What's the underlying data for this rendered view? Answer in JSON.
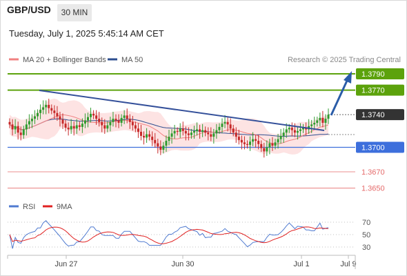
{
  "header": {
    "symbol": "GBP/USD",
    "timeframe": "30 MIN",
    "datetime": "Tuesday, July 1, 2025 5:45:14 AM CET"
  },
  "colors": {
    "candle_up": "#2e9b2e",
    "candle_down": "#c62828",
    "ma20": "#f08080",
    "bollinger_fill": "#fde3e3",
    "ma50": "#2c4d8f",
    "trendline": "#34509a",
    "resistance": "#5ca20c",
    "current": "#333333",
    "support1": "#3d6fdc",
    "support2": "#e56a6a",
    "projection": "#2a5ca8",
    "rsi": "#4f7ad0",
    "rsi_ma": "#e02020"
  },
  "chart_data": [
    {
      "type": "candlestick",
      "legend": [
        {
          "name": "MA 20 + Bollinger Bands",
          "color": "#f08080"
        },
        {
          "name": "MA 50",
          "color": "#2c4d8f"
        }
      ],
      "watermark": "Research © 2025 Trading Central",
      "price_levels": [
        {
          "value": 1.379,
          "label": "1.3790",
          "kind": "resistance"
        },
        {
          "value": 1.377,
          "label": "1.3770",
          "kind": "resistance"
        },
        {
          "value": 1.374,
          "label": "1.3740",
          "kind": "current"
        },
        {
          "value": 1.37,
          "label": "1.3700",
          "kind": "support"
        },
        {
          "value": 1.367,
          "label": "1.3670",
          "kind": "support-minor"
        },
        {
          "value": 1.365,
          "label": "1.3650",
          "kind": "support-minor"
        }
      ],
      "x_ticks": [
        "Jun 27",
        "Jun 30",
        "Jul 1",
        "Jul 9"
      ],
      "closes": [
        1.3728,
        1.3722,
        1.3726,
        1.3718,
        1.3715,
        1.3722,
        1.3728,
        1.3732,
        1.3735,
        1.3738,
        1.3742,
        1.3746,
        1.3749,
        1.3752,
        1.3748,
        1.3745,
        1.3742,
        1.3738,
        1.3734,
        1.3729,
        1.3724,
        1.3722,
        1.3726,
        1.3723,
        1.3727,
        1.3725,
        1.3729,
        1.3733,
        1.3737,
        1.3741,
        1.3739,
        1.3735,
        1.3731,
        1.3727,
        1.3723,
        1.3727,
        1.3731,
        1.3735,
        1.3733,
        1.373,
        1.3736,
        1.3739,
        1.3735,
        1.3731,
        1.3727,
        1.3723,
        1.3719,
        1.3714,
        1.3712,
        1.3716,
        1.3713,
        1.3709,
        1.3705,
        1.3701,
        1.3697,
        1.3702,
        1.3708,
        1.3713,
        1.3717,
        1.372,
        1.3719,
        1.3723,
        1.372,
        1.3717,
        1.3715,
        1.3718,
        1.372,
        1.3722,
        1.3719,
        1.3721,
        1.3718,
        1.3716,
        1.3713,
        1.3717,
        1.3721,
        1.3725,
        1.3729,
        1.3731,
        1.3728,
        1.3723,
        1.3718,
        1.3713,
        1.3709,
        1.3706,
        1.3704,
        1.3703,
        1.3707,
        1.371,
        1.3708,
        1.3704,
        1.3699,
        1.3695,
        1.37,
        1.3705,
        1.3702,
        1.3706,
        1.371,
        1.3714,
        1.3718,
        1.3722,
        1.3724,
        1.3721,
        1.3718,
        1.372,
        1.3722,
        1.3724,
        1.3722,
        1.3726,
        1.3728,
        1.373,
        1.3733,
        1.3736,
        1.373,
        1.3735,
        1.374
      ],
      "rsi": {
        "legend": [
          {
            "name": "RSI",
            "color": "#4f7ad0"
          },
          {
            "name": "9MA",
            "color": "#e02020"
          }
        ],
        "levels": [
          {
            "value": 70,
            "label": "70"
          },
          {
            "value": 50,
            "label": "50"
          },
          {
            "value": 30,
            "label": "30"
          }
        ],
        "ylim": [
          20,
          80
        ]
      }
    }
  ]
}
